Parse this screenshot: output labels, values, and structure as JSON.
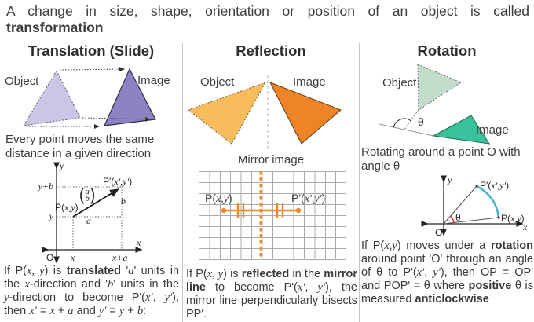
{
  "header": {
    "line1": "A change in size, shape, orientation or position of an object is called",
    "line2": "transformation"
  },
  "translation": {
    "title": "Translation (Slide)",
    "object_label": "Object",
    "image_label": "Image",
    "caption": "Every point moves the same distance in a given direction",
    "graph": {
      "y_axis": "y",
      "x_axis": "x",
      "origin": "O",
      "y_plus_b": "y+b",
      "y_tick": "y",
      "x_tick": "x",
      "x_plus_a": "x+a",
      "a_len": "a",
      "b_len": "b",
      "p_label": [
        {
          "t": "P("
        },
        {
          "t": "x,y",
          "i": true
        },
        {
          "t": ")"
        }
      ],
      "p_prime_label": [
        {
          "t": "P'("
        },
        {
          "t": "x','y'",
          "i": false
        },
        {
          "t": ""
        }
      ],
      "p_prime_rich": [
        {
          "t": "P'("
        },
        {
          "t": "x',y'",
          "i": true
        },
        {
          "t": ")"
        }
      ],
      "vector": {
        "open": "(",
        "a": "a",
        "b": "b",
        "close": ")"
      }
    },
    "description": [
      {
        "t": "If P("
      },
      {
        "t": "x, y",
        "i": true
      },
      {
        "t": ") is "
      },
      {
        "t": "translated",
        "b": true
      },
      {
        "t": " '"
      },
      {
        "t": "a",
        "i": true
      },
      {
        "t": "' units in the "
      },
      {
        "t": "x",
        "i": true
      },
      {
        "t": "-direction and '"
      },
      {
        "t": "b",
        "i": true
      },
      {
        "t": "' units in the "
      },
      {
        "t": "y",
        "i": true
      },
      {
        "t": "-direction to become P'("
      },
      {
        "t": "x'",
        "i": true
      },
      {
        "t": ", "
      },
      {
        "t": "y'",
        "i": true
      },
      {
        "t": "), then "
      },
      {
        "t": "x'",
        "i": true
      },
      {
        "t": " = "
      },
      {
        "t": "x",
        "i": true
      },
      {
        "t": " + "
      },
      {
        "t": "a",
        "i": true
      },
      {
        "t": " and "
      },
      {
        "t": "y'",
        "i": true
      },
      {
        "t": " = "
      },
      {
        "t": "y",
        "i": true
      },
      {
        "t": " + "
      },
      {
        "t": "b",
        "i": true
      },
      {
        "t": ":"
      }
    ]
  },
  "reflection": {
    "title": "Reflection",
    "object_label": "Object",
    "image_label": "Image",
    "mirror_caption": "Mirror image",
    "grid": {
      "p_label": [
        {
          "t": "P("
        },
        {
          "t": "x,y",
          "i": true
        },
        {
          "t": ")"
        }
      ],
      "p_prime_label": [
        {
          "t": "P'("
        },
        {
          "t": "x',y'",
          "i": true
        },
        {
          "t": ")"
        }
      ]
    },
    "description": [
      {
        "t": "If P("
      },
      {
        "t": "x, y",
        "i": true
      },
      {
        "t": ") is "
      },
      {
        "t": "reflected",
        "b": true
      },
      {
        "t": " in the "
      },
      {
        "t": "mirror line",
        "b": true
      },
      {
        "t": " to become P'("
      },
      {
        "t": "x'",
        "i": true
      },
      {
        "t": ", "
      },
      {
        "t": "y'",
        "i": true
      },
      {
        "t": "), the mirror line perpendicularly bisects PP'."
      }
    ]
  },
  "rotation": {
    "title": "Rotation",
    "object_label": "Object",
    "image_label": "Image",
    "theta": "θ",
    "caption": "Rotating around a point O with angle θ",
    "graph": {
      "y_axis": "y",
      "x_axis": "x",
      "origin": "O",
      "theta": "θ",
      "p_label": [
        {
          "t": "P("
        },
        {
          "t": "x,y",
          "i": true
        },
        {
          "t": ")"
        }
      ],
      "p_prime_label": [
        {
          "t": "P'("
        },
        {
          "t": "x',y'",
          "i": true
        },
        {
          "t": ")"
        }
      ]
    },
    "description": [
      {
        "t": "If P("
      },
      {
        "t": "x,y",
        "i": true
      },
      {
        "t": ") moves under a "
      },
      {
        "t": "rotation",
        "b": true
      },
      {
        "t": " around point 'O' through an angle of θ to P'("
      },
      {
        "t": "x'",
        "i": true
      },
      {
        "t": ", "
      },
      {
        "t": "y'",
        "i": true
      },
      {
        "t": "), then OP = OP' and POP' = θ where "
      },
      {
        "t": "positive",
        "b": true
      },
      {
        "t": " θ is measured "
      },
      {
        "t": "anticlockwise",
        "b": true
      }
    ]
  },
  "colors": {
    "translation_object": "#ccc5e5",
    "translation_image": "#8d82c4",
    "reflection_object": "#f7bd5d",
    "reflection_image": "#ee8327",
    "rotation_object": "#c2ddcb",
    "rotation_image": "#38c39c",
    "orange_accent": "#f08a28",
    "rotation_arc_teal": "#4ab5ce",
    "angle_arc_red": "#cc3333"
  }
}
